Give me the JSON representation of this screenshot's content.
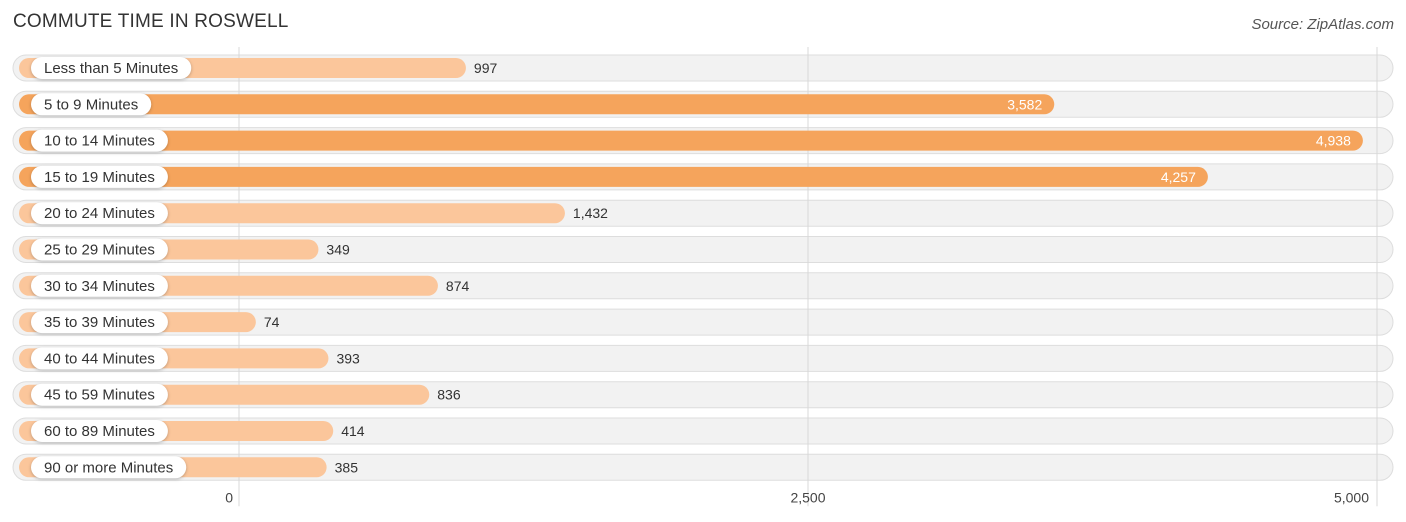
{
  "title": "COMMUTE TIME IN ROSWELL",
  "source": "Source: ZipAtlas.com",
  "colors": {
    "bar_light": "#fbc69b",
    "bar_dark": "#f5a45c",
    "value_text_inside": "#ffffff",
    "value_text_outside": "#333333"
  },
  "chart_data": {
    "type": "bar",
    "orientation": "horizontal",
    "categories": [
      "Less than 5 Minutes",
      "5 to 9 Minutes",
      "10 to 14 Minutes",
      "15 to 19 Minutes",
      "20 to 24 Minutes",
      "25 to 29 Minutes",
      "30 to 34 Minutes",
      "35 to 39 Minutes",
      "40 to 44 Minutes",
      "45 to 59 Minutes",
      "60 to 89 Minutes",
      "90 or more Minutes"
    ],
    "values": [
      997,
      3582,
      4938,
      4257,
      1432,
      349,
      874,
      74,
      393,
      836,
      414,
      385
    ],
    "value_labels": [
      "997",
      "3,582",
      "4,938",
      "4,257",
      "1,432",
      "349",
      "874",
      "74",
      "393",
      "836",
      "414",
      "385"
    ],
    "xlim": [
      0,
      5000
    ],
    "ticks": [
      0,
      2500,
      5000
    ],
    "tick_labels": [
      "0",
      "2,500",
      "5,000"
    ],
    "title": "COMMUTE TIME IN ROSWELL",
    "xlabel": "",
    "ylabel": "",
    "grid": true
  }
}
